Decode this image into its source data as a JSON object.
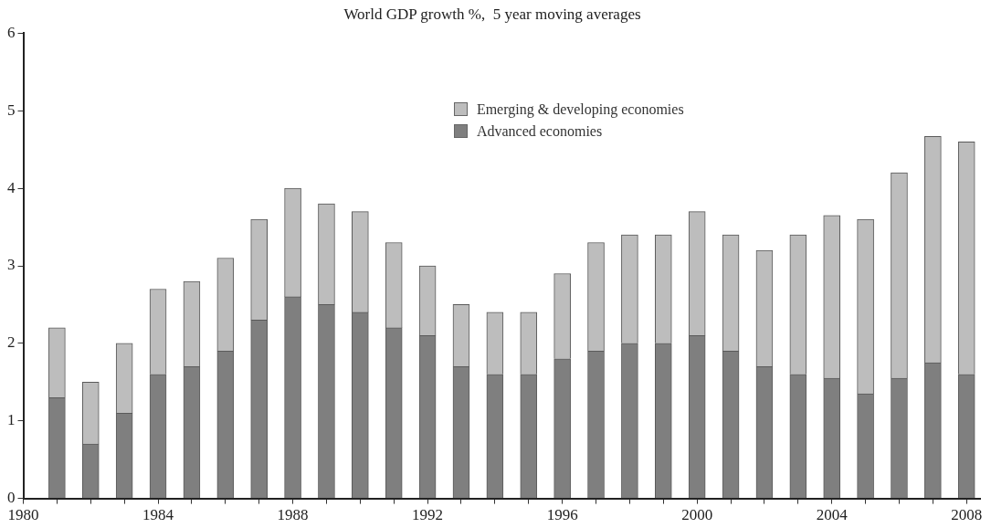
{
  "chart_data": {
    "type": "bar",
    "title": "World GDP growth %,  5 year moving averages",
    "stacked": true,
    "x": [
      1981,
      1982,
      1983,
      1984,
      1985,
      1986,
      1987,
      1988,
      1989,
      1990,
      1991,
      1992,
      1993,
      1994,
      1995,
      1996,
      1997,
      1998,
      1999,
      2000,
      2001,
      2002,
      2003,
      2004,
      2005,
      2006,
      2007,
      2008
    ],
    "series": [
      {
        "name": "Advanced economies",
        "color": "#7f7f7f",
        "values": [
          1.3,
          0.7,
          1.1,
          1.6,
          1.7,
          1.9,
          2.3,
          2.6,
          2.5,
          2.4,
          2.2,
          2.1,
          1.7,
          1.6,
          1.6,
          1.8,
          1.9,
          2.0,
          2.0,
          2.1,
          1.9,
          1.7,
          1.6,
          1.55,
          1.35,
          1.55,
          1.75,
          1.6
        ]
      },
      {
        "name": "Emerging & developing economies",
        "color": "#bdbdbd",
        "values": [
          0.9,
          0.8,
          0.9,
          1.1,
          1.1,
          1.2,
          1.3,
          1.4,
          1.3,
          1.3,
          1.1,
          0.9,
          0.8,
          0.8,
          0.8,
          1.1,
          1.4,
          1.4,
          1.4,
          1.6,
          1.5,
          1.5,
          1.8,
          2.1,
          2.25,
          2.65,
          2.92,
          3.0
        ]
      }
    ],
    "xlim": [
      1980,
      2008.4
    ],
    "xticks": [
      1980,
      {
        "value": 1981,
        "label": null
      },
      {
        "value": 1982,
        "label": null
      },
      {
        "value": 1983,
        "label": null
      },
      1984,
      {
        "value": 1985,
        "label": null
      },
      {
        "value": 1986,
        "label": null
      },
      {
        "value": 1987,
        "label": null
      },
      1988,
      {
        "value": 1989,
        "label": null
      },
      {
        "value": 1990,
        "label": null
      },
      {
        "value": 1991,
        "label": null
      },
      1992,
      {
        "value": 1993,
        "label": null
      },
      {
        "value": 1994,
        "label": null
      },
      {
        "value": 1995,
        "label": null
      },
      1996,
      {
        "value": 1997,
        "label": null
      },
      {
        "value": 1998,
        "label": null
      },
      {
        "value": 1999,
        "label": null
      },
      2000,
      {
        "value": 2001,
        "label": null
      },
      {
        "value": 2002,
        "label": null
      },
      {
        "value": 2003,
        "label": null
      },
      2004,
      {
        "value": 2005,
        "label": null
      },
      {
        "value": 2006,
        "label": null
      },
      {
        "value": 2007,
        "label": null
      },
      2008
    ],
    "ylim": [
      0,
      6
    ],
    "yticks": [
      0,
      1,
      2,
      3,
      4,
      5,
      6
    ],
    "grid": false,
    "legend": "top"
  }
}
